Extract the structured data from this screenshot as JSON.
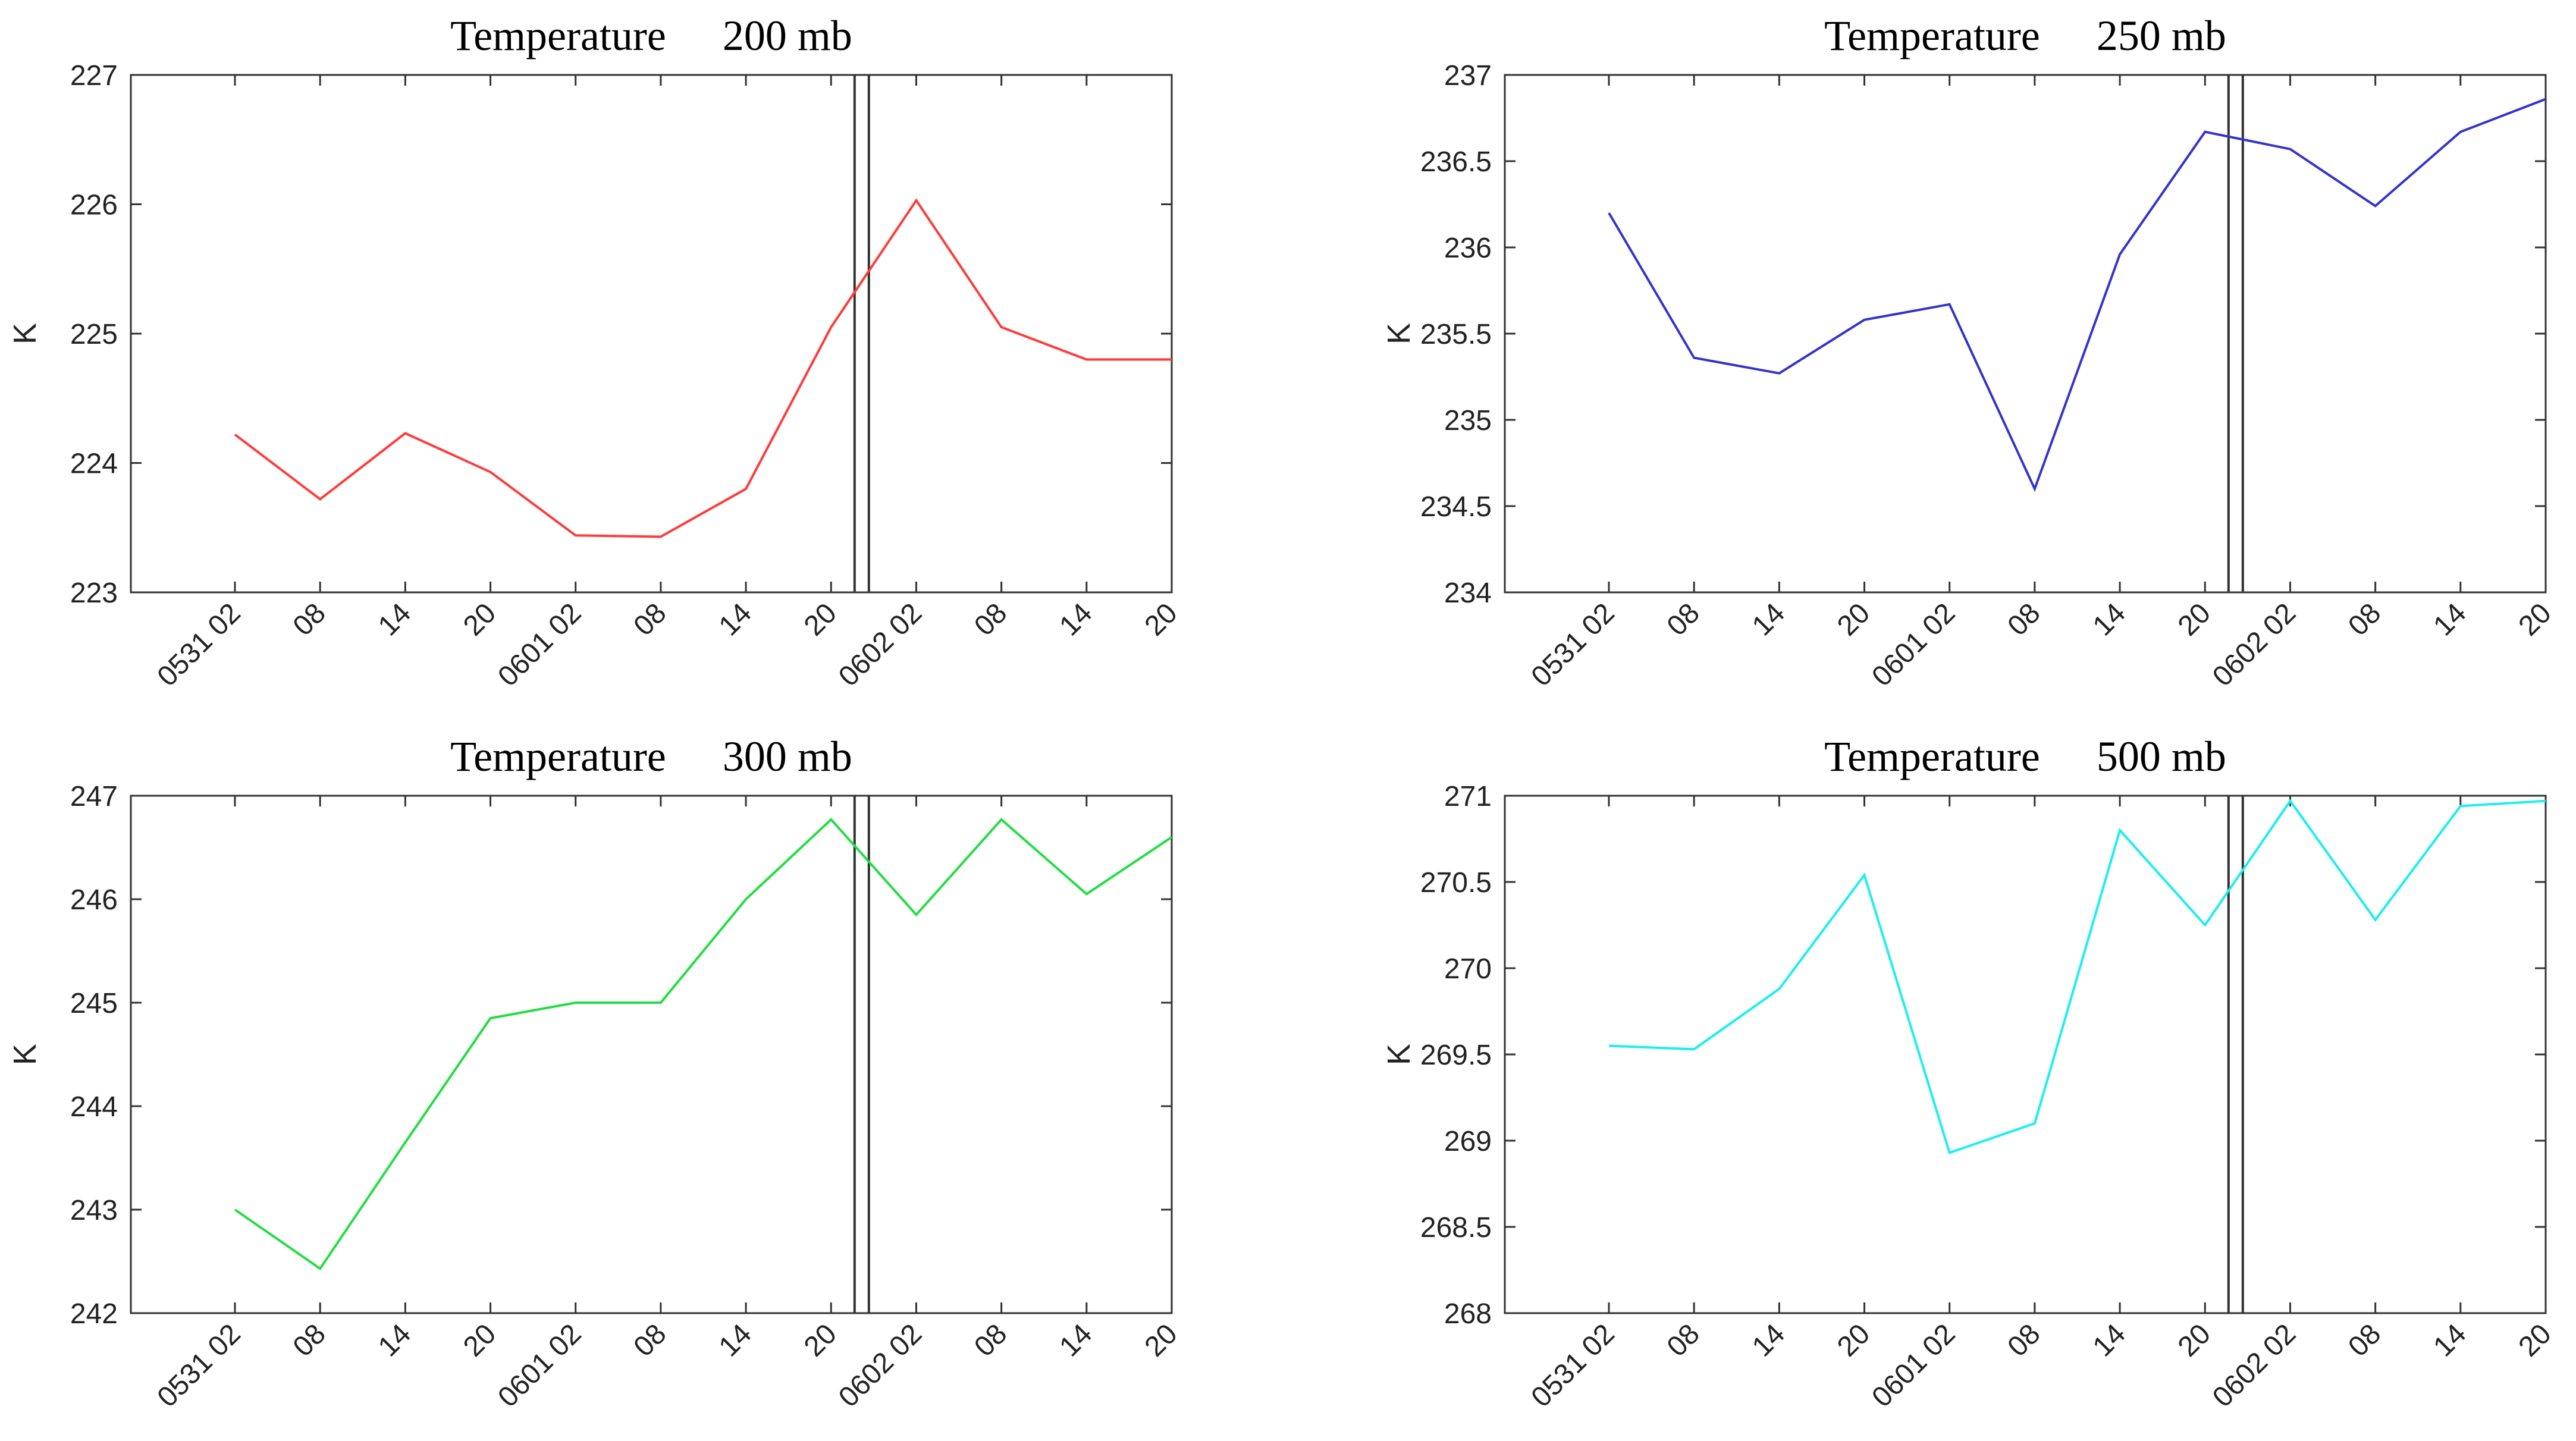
{
  "chart_data": [
    {
      "type": "line",
      "title_prefix": "Temperature",
      "title_level": "200 mb",
      "ylabel": "K",
      "ylim": [
        223,
        227
      ],
      "yticks": [
        "223",
        "224",
        "225",
        "226",
        "227"
      ],
      "categories": [
        "0531 02",
        "08",
        "14",
        "20",
        "0601 02",
        "08",
        "14",
        "20",
        "0602 02",
        "08",
        "14",
        "20"
      ],
      "marker_between": [
        "20",
        "0602 02"
      ],
      "series": [
        {
          "name": "200 mb",
          "color": "#ff3b3b",
          "values": [
            224.22,
            223.72,
            224.23,
            223.93,
            223.44,
            223.43,
            223.8,
            225.05,
            226.03,
            225.05,
            224.8,
            224.8
          ]
        }
      ]
    },
    {
      "type": "line",
      "title_prefix": "Temperature",
      "title_level": "250 mb",
      "ylabel": "K",
      "ylim": [
        234,
        237
      ],
      "yticks": [
        "234",
        "234.5",
        "235",
        "235.5",
        "236",
        "236.5",
        "237"
      ],
      "categories": [
        "0531 02",
        "08",
        "14",
        "20",
        "0601 02",
        "08",
        "14",
        "20",
        "0602 02",
        "08",
        "14",
        "20"
      ],
      "marker_between": [
        "20",
        "0602 02"
      ],
      "series": [
        {
          "name": "250 mb",
          "color": "#3333cc",
          "values": [
            236.2,
            235.36,
            235.27,
            235.58,
            235.67,
            234.6,
            235.96,
            236.67,
            236.57,
            236.24,
            236.67,
            236.86
          ]
        }
      ]
    },
    {
      "type": "line",
      "title_prefix": "Temperature",
      "title_level": "300 mb",
      "ylabel": "K",
      "ylim": [
        242,
        247
      ],
      "yticks": [
        "242",
        "243",
        "244",
        "245",
        "246",
        "247"
      ],
      "categories": [
        "0531 02",
        "08",
        "14",
        "20",
        "0601 02",
        "08",
        "14",
        "20",
        "0602 02",
        "08",
        "14",
        "20"
      ],
      "marker_between": [
        "20",
        "0602 02"
      ],
      "series": [
        {
          "name": "300 mb",
          "color": "#22dd44",
          "values": [
            243.0,
            242.43,
            243.65,
            244.85,
            245.0,
            245.0,
            246.0,
            246.77,
            245.85,
            246.77,
            246.05,
            246.6
          ]
        }
      ]
    },
    {
      "type": "line",
      "title_prefix": "Temperature",
      "title_level": "500 mb",
      "ylabel": "K",
      "ylim": [
        268,
        271
      ],
      "yticks": [
        "268",
        "268.5",
        "269",
        "269.5",
        "270",
        "270.5",
        "271"
      ],
      "categories": [
        "0531 02",
        "08",
        "14",
        "20",
        "0601 02",
        "08",
        "14",
        "20",
        "0602 02",
        "08",
        "14",
        "20"
      ],
      "marker_between": [
        "20",
        "0602 02"
      ],
      "series": [
        {
          "name": "500 mb",
          "color": "#1eeeee",
          "values": [
            269.55,
            269.53,
            269.88,
            270.54,
            268.93,
            269.1,
            270.8,
            270.25,
            270.97,
            270.28,
            270.94,
            270.97
          ]
        }
      ]
    }
  ]
}
